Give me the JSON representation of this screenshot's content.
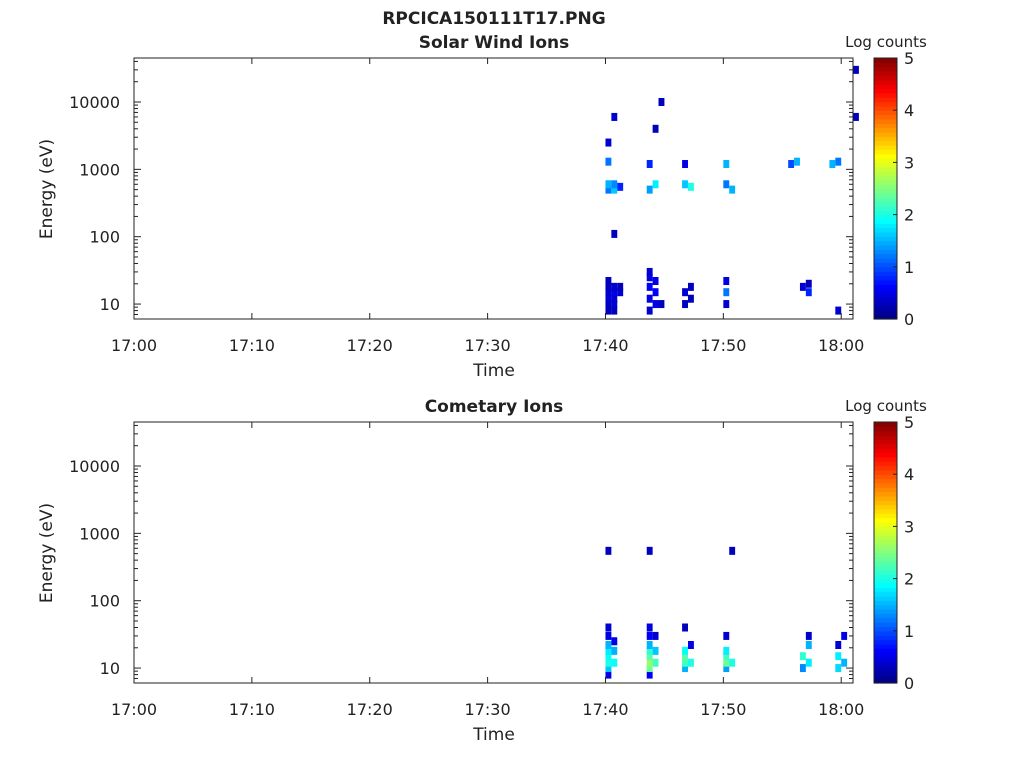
{
  "figure": {
    "title": "RPCICA150111T17.PNG",
    "colors": {
      "axis": "#222222",
      "background": "#ffffff"
    }
  },
  "chart_data": [
    {
      "type": "heatmap",
      "title": "Solar Wind Ions",
      "xlabel": "Time",
      "ylabel": "Energy (eV)",
      "x_ticks": [
        "17:00",
        "17:10",
        "17:20",
        "17:30",
        "17:40",
        "17:50",
        "18:00"
      ],
      "y_ticks": [
        "10",
        "100",
        "1000",
        "10000"
      ],
      "y_scale": "log",
      "ylim": [
        6,
        45000
      ],
      "x_range": [
        "17:00",
        "18:01"
      ],
      "colorbar": {
        "label": "Log counts",
        "ticks": [
          "0",
          "1",
          "2",
          "3",
          "4",
          "5"
        ],
        "range": [
          0,
          5
        ],
        "colormap": "jet"
      },
      "cells": [
        {
          "t": "17:40",
          "e": 8,
          "v": 0.3
        },
        {
          "t": "17:40",
          "e": 10,
          "v": 0.3
        },
        {
          "t": "17:40",
          "e": 12,
          "v": 0.4
        },
        {
          "t": "17:40",
          "e": 15,
          "v": 0.4
        },
        {
          "t": "17:40",
          "e": 18,
          "v": 0.3
        },
        {
          "t": "17:40",
          "e": 22,
          "v": 0.3
        },
        {
          "t": "17:40.5",
          "e": 8,
          "v": 0.3
        },
        {
          "t": "17:40.5",
          "e": 10,
          "v": 0.4
        },
        {
          "t": "17:40.5",
          "e": 12,
          "v": 0.4
        },
        {
          "t": "17:40.5",
          "e": 15,
          "v": 0.5
        },
        {
          "t": "17:40.5",
          "e": 18,
          "v": 0.4
        },
        {
          "t": "17:41",
          "e": 15,
          "v": 0.4
        },
        {
          "t": "17:41",
          "e": 18,
          "v": 0.3
        },
        {
          "t": "17:40",
          "e": 500,
          "v": 1.2
        },
        {
          "t": "17:40",
          "e": 600,
          "v": 1.5
        },
        {
          "t": "17:40.5",
          "e": 500,
          "v": 1.6
        },
        {
          "t": "17:40.5",
          "e": 600,
          "v": 1.3
        },
        {
          "t": "17:41",
          "e": 550,
          "v": 0.8
        },
        {
          "t": "17:40",
          "e": 1300,
          "v": 1.2
        },
        {
          "t": "17:40",
          "e": 2500,
          "v": 0.4
        },
        {
          "t": "17:40.5",
          "e": 6000,
          "v": 0.4
        },
        {
          "t": "17:40.5",
          "e": 110,
          "v": 0.3
        },
        {
          "t": "17:43.5",
          "e": 8,
          "v": 0.4
        },
        {
          "t": "17:43.5",
          "e": 12,
          "v": 0.5
        },
        {
          "t": "17:43.5",
          "e": 18,
          "v": 0.6
        },
        {
          "t": "17:43.5",
          "e": 25,
          "v": 0.5
        },
        {
          "t": "17:43.5",
          "e": 30,
          "v": 0.4
        },
        {
          "t": "17:44",
          "e": 10,
          "v": 0.5
        },
        {
          "t": "17:44",
          "e": 15,
          "v": 0.6
        },
        {
          "t": "17:44",
          "e": 22,
          "v": 0.5
        },
        {
          "t": "17:44.5",
          "e": 10,
          "v": 0.3
        },
        {
          "t": "17:43.5",
          "e": 500,
          "v": 1.4
        },
        {
          "t": "17:44",
          "e": 600,
          "v": 1.8
        },
        {
          "t": "17:43.5",
          "e": 1200,
          "v": 0.8
        },
        {
          "t": "17:44.5",
          "e": 10000,
          "v": 0.3
        },
        {
          "t": "17:44",
          "e": 4000,
          "v": 0.3
        },
        {
          "t": "17:46.5",
          "e": 10,
          "v": 0.3
        },
        {
          "t": "17:46.5",
          "e": 15,
          "v": 0.4
        },
        {
          "t": "17:47",
          "e": 12,
          "v": 0.3
        },
        {
          "t": "17:47",
          "e": 18,
          "v": 0.3
        },
        {
          "t": "17:46.5",
          "e": 600,
          "v": 1.6
        },
        {
          "t": "17:47",
          "e": 550,
          "v": 2.0
        },
        {
          "t": "17:46.5",
          "e": 1200,
          "v": 0.5
        },
        {
          "t": "17:50",
          "e": 10,
          "v": 0.4
        },
        {
          "t": "17:50",
          "e": 15,
          "v": 1.2
        },
        {
          "t": "17:50",
          "e": 22,
          "v": 0.5
        },
        {
          "t": "17:50",
          "e": 600,
          "v": 1.2
        },
        {
          "t": "17:50.5",
          "e": 500,
          "v": 1.5
        },
        {
          "t": "17:50",
          "e": 1200,
          "v": 1.5
        },
        {
          "t": "17:55.5",
          "e": 1200,
          "v": 1.0
        },
        {
          "t": "17:56",
          "e": 1300,
          "v": 1.5
        },
        {
          "t": "17:56.5",
          "e": 18,
          "v": 0.4
        },
        {
          "t": "17:57",
          "e": 15,
          "v": 0.8
        },
        {
          "t": "17:57",
          "e": 20,
          "v": 0.3
        },
        {
          "t": "17:59",
          "e": 1200,
          "v": 1.5
        },
        {
          "t": "17:59.5",
          "e": 1300,
          "v": 1.2
        },
        {
          "t": "17:59.5",
          "e": 8,
          "v": 0.4
        },
        {
          "t": "18:01",
          "e": 30000,
          "v": 0.3
        },
        {
          "t": "18:01",
          "e": 6000,
          "v": 0.3
        }
      ]
    },
    {
      "type": "heatmap",
      "title": "Cometary Ions",
      "xlabel": "Time",
      "ylabel": "Energy (eV)",
      "x_ticks": [
        "17:00",
        "17:10",
        "17:20",
        "17:30",
        "17:40",
        "17:50",
        "18:00"
      ],
      "y_ticks": [
        "10",
        "100",
        "1000",
        "10000"
      ],
      "y_scale": "log",
      "ylim": [
        6,
        45000
      ],
      "x_range": [
        "17:00",
        "18:01"
      ],
      "colorbar": {
        "label": "Log counts",
        "ticks": [
          "0",
          "1",
          "2",
          "3",
          "4",
          "5"
        ],
        "range": [
          0,
          5
        ],
        "colormap": "jet"
      },
      "cells": [
        {
          "t": "17:40",
          "e": 8,
          "v": 0.5
        },
        {
          "t": "17:40",
          "e": 10,
          "v": 1.6
        },
        {
          "t": "17:40",
          "e": 12,
          "v": 2.0
        },
        {
          "t": "17:40",
          "e": 15,
          "v": 1.9
        },
        {
          "t": "17:40",
          "e": 18,
          "v": 1.8
        },
        {
          "t": "17:40",
          "e": 22,
          "v": 1.5
        },
        {
          "t": "17:40",
          "e": 30,
          "v": 0.5
        },
        {
          "t": "17:40",
          "e": 40,
          "v": 0.4
        },
        {
          "t": "17:40.5",
          "e": 12,
          "v": 1.9
        },
        {
          "t": "17:40.5",
          "e": 18,
          "v": 1.5
        },
        {
          "t": "17:40.5",
          "e": 25,
          "v": 0.5
        },
        {
          "t": "17:40",
          "e": 550,
          "v": 0.3
        },
        {
          "t": "17:43.5",
          "e": 8,
          "v": 0.6
        },
        {
          "t": "17:43.5",
          "e": 10,
          "v": 2.4
        },
        {
          "t": "17:43.5",
          "e": 12,
          "v": 2.6
        },
        {
          "t": "17:43.5",
          "e": 15,
          "v": 2.3
        },
        {
          "t": "17:43.5",
          "e": 18,
          "v": 2.1
        },
        {
          "t": "17:43.5",
          "e": 22,
          "v": 1.5
        },
        {
          "t": "17:43.5",
          "e": 30,
          "v": 0.6
        },
        {
          "t": "17:43.5",
          "e": 40,
          "v": 0.5
        },
        {
          "t": "17:44",
          "e": 12,
          "v": 2.2
        },
        {
          "t": "17:44",
          "e": 18,
          "v": 1.6
        },
        {
          "t": "17:44",
          "e": 30,
          "v": 0.4
        },
        {
          "t": "17:43.5",
          "e": 550,
          "v": 0.3
        },
        {
          "t": "17:46.5",
          "e": 10,
          "v": 1.5
        },
        {
          "t": "17:46.5",
          "e": 12,
          "v": 2.2
        },
        {
          "t": "17:46.5",
          "e": 15,
          "v": 2.3
        },
        {
          "t": "17:46.5",
          "e": 18,
          "v": 1.9
        },
        {
          "t": "17:47",
          "e": 12,
          "v": 2.0
        },
        {
          "t": "17:47",
          "e": 22,
          "v": 0.5
        },
        {
          "t": "17:46.5",
          "e": 40,
          "v": 0.3
        },
        {
          "t": "17:50",
          "e": 10,
          "v": 1.4
        },
        {
          "t": "17:50",
          "e": 12,
          "v": 2.4
        },
        {
          "t": "17:50",
          "e": 15,
          "v": 2.2
        },
        {
          "t": "17:50",
          "e": 18,
          "v": 1.8
        },
        {
          "t": "17:50",
          "e": 30,
          "v": 0.4
        },
        {
          "t": "17:50.5",
          "e": 12,
          "v": 2.0
        },
        {
          "t": "17:50.5",
          "e": 550,
          "v": 0.3
        },
        {
          "t": "17:56.5",
          "e": 10,
          "v": 1.3
        },
        {
          "t": "17:56.5",
          "e": 15,
          "v": 2.1
        },
        {
          "t": "17:57",
          "e": 12,
          "v": 1.8
        },
        {
          "t": "17:57",
          "e": 22,
          "v": 1.5
        },
        {
          "t": "17:57",
          "e": 30,
          "v": 0.4
        },
        {
          "t": "17:59.5",
          "e": 10,
          "v": 1.7
        },
        {
          "t": "17:59.5",
          "e": 15,
          "v": 1.8
        },
        {
          "t": "17:59.5",
          "e": 22,
          "v": 0.4
        },
        {
          "t": "18:00",
          "e": 12,
          "v": 1.5
        },
        {
          "t": "18:00",
          "e": 30,
          "v": 0.5
        }
      ]
    }
  ]
}
